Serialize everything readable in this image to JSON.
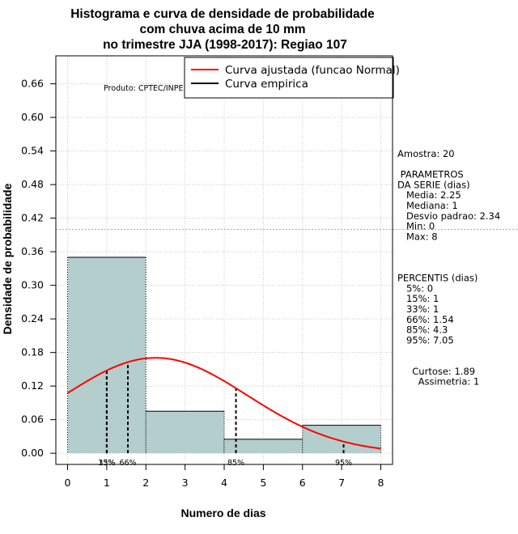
{
  "chart_data": {
    "type": "bar",
    "title_lines": [
      "Histograma e curva de densidade de probabilidade",
      "com chuva acima de 10 mm",
      "no trimestre JJA (1998-2017): Regiao 107"
    ],
    "xlabel": "Numero de dias",
    "ylabel": "Densidade de probabilidade",
    "xlim": [
      -0.3,
      8.3
    ],
    "ylim": [
      -0.02,
      0.71
    ],
    "x_ticks": [
      0,
      1,
      2,
      3,
      4,
      5,
      6,
      7,
      8
    ],
    "y_ticks": [
      0.0,
      0.06,
      0.12,
      0.18,
      0.24,
      0.3,
      0.36,
      0.42,
      0.48,
      0.54,
      0.6,
      0.66
    ],
    "y_tick_labels": [
      "0.00",
      "0.06",
      "0.12",
      "0.18",
      "0.24",
      "0.30",
      "0.36",
      "0.42",
      "0.48",
      "0.54",
      "0.60",
      "0.66"
    ],
    "reference_line_y": 0.4,
    "bars": [
      {
        "x0": 0,
        "x1": 2,
        "density": 0.35
      },
      {
        "x0": 2,
        "x1": 4,
        "density": 0.075
      },
      {
        "x0": 4,
        "x1": 6,
        "density": 0.025
      },
      {
        "x0": 6,
        "x1": 8,
        "density": 0.05
      }
    ],
    "normal_curve": {
      "mean": 2.25,
      "sd": 2.34
    },
    "percentile_markers": [
      {
        "label": "15%",
        "x": 1
      },
      {
        "label": "33%",
        "x": 1
      },
      {
        "label": "66%",
        "x": 1.54
      },
      {
        "label": "85%",
        "x": 4.3
      },
      {
        "label": "95%",
        "x": 7.05
      }
    ],
    "marker_labels": [
      {
        "text": "15%",
        "x": 1
      },
      {
        "text": "33%",
        "x": 1
      },
      {
        "text": "66%",
        "x": 1.54
      },
      {
        "text": "85%",
        "x": 4.3
      },
      {
        "text": "95%",
        "x": 7.05
      }
    ],
    "legend": {
      "placement": "top-right",
      "entries": [
        {
          "label": "Curva ajustada (funcao Normal)",
          "color": "#ff0000"
        },
        {
          "label": "Curva empirica",
          "color": "#000000"
        }
      ]
    },
    "credit": "Produto: CPTEC/INPE",
    "grid": true,
    "colors": {
      "bar_fill": "#b4cecd",
      "curve": "#ff0000"
    }
  },
  "side_panel": [
    "Amostra: 20",
    "",
    " PARAMETROS",
    "DA SERIE (dias)",
    "   Media: 2.25",
    "   Mediana: 1",
    "   Desvio padrao: 2.34",
    "   Min: 0",
    "   Max: 8",
    "",
    "",
    "",
    "PERCENTIS (dias)",
    "   5%: 0",
    "   15%: 1",
    "   33%: 1",
    "   66%: 1.54",
    "   85%: 4.3",
    "   95%: 7.05",
    "",
    "",
    "     Curtose: 1.89",
    "       Assimetria: 1"
  ]
}
